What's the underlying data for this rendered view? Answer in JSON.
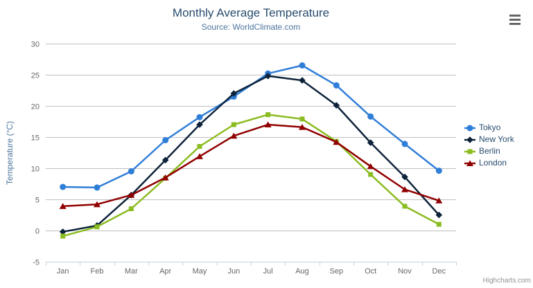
{
  "header": {
    "title": "Monthly Average Temperature",
    "subtitle": "Source: WorldClimate.com"
  },
  "credits": "Highcharts.com",
  "colors": {
    "title": "#274b6d",
    "subtitle": "#4d759e",
    "axis_label": "#666666",
    "grid_line": "#c0c0c0",
    "axis_line": "#c0d0e0",
    "legend_text": "#274b6d",
    "credits_text": "#909090",
    "menu_icon": "#666666"
  },
  "chart_data": {
    "type": "line",
    "title": "Monthly Average Temperature",
    "subtitle": "Source: WorldClimate.com",
    "xlabel": "",
    "ylabel": "Temperature (°C)",
    "ylim": [
      -5,
      30
    ],
    "ytick_step": 5,
    "yticks": [
      -5,
      0,
      5,
      10,
      15,
      20,
      25,
      30
    ],
    "grid": true,
    "legend_position": "right",
    "categories": [
      "Jan",
      "Feb",
      "Mar",
      "Apr",
      "May",
      "Jun",
      "Jul",
      "Aug",
      "Sep",
      "Oct",
      "Nov",
      "Dec"
    ],
    "series": [
      {
        "name": "Tokyo",
        "color": "#2f7ed8",
        "marker": "circle",
        "values": [
          7.0,
          6.9,
          9.5,
          14.5,
          18.2,
          21.5,
          25.2,
          26.5,
          23.3,
          18.3,
          13.9,
          9.6
        ]
      },
      {
        "name": "New York",
        "color": "#0d233a",
        "marker": "diamond",
        "values": [
          -0.2,
          0.8,
          5.7,
          11.3,
          17.0,
          22.0,
          24.8,
          24.1,
          20.1,
          14.1,
          8.6,
          2.5
        ]
      },
      {
        "name": "Berlin",
        "color": "#8bbc21",
        "marker": "square",
        "values": [
          -0.9,
          0.6,
          3.5,
          8.4,
          13.5,
          17.0,
          18.6,
          17.9,
          14.3,
          9.0,
          3.9,
          1.0
        ]
      },
      {
        "name": "London",
        "color": "#910000",
        "marker": "triangle",
        "values": [
          3.9,
          4.2,
          5.7,
          8.5,
          11.9,
          15.2,
          17.0,
          16.6,
          14.2,
          10.3,
          6.6,
          4.8
        ]
      }
    ]
  }
}
